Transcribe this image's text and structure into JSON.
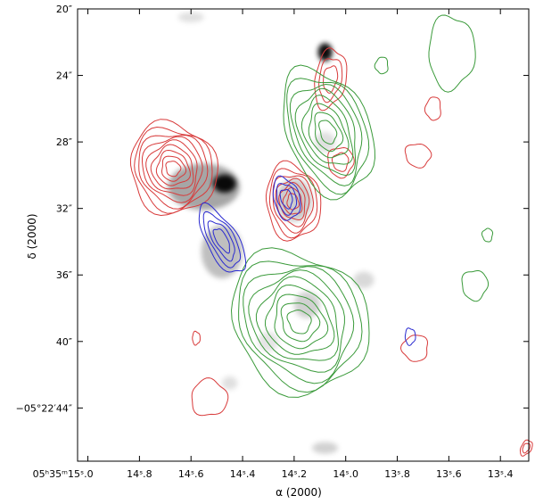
{
  "chart_data": {
    "type": "contour",
    "xlabel": "α (2000)",
    "ylabel": "δ (2000)",
    "x_ticks": [
      {
        "value": 15.0,
        "label": "05ʰ35ᵐ15ˢ.0"
      },
      {
        "value": 14.8,
        "label": "14ˢ.8"
      },
      {
        "value": 14.6,
        "label": "14ˢ.6"
      },
      {
        "value": 14.4,
        "label": "14ˢ.4"
      },
      {
        "value": 14.2,
        "label": "14ˢ.2"
      },
      {
        "value": 14.0,
        "label": "14ˢ.0"
      },
      {
        "value": 13.8,
        "label": "13ˢ.8"
      },
      {
        "value": 13.6,
        "label": "13ˢ.6"
      },
      {
        "value": 13.4,
        "label": "13ˢ.4"
      }
    ],
    "y_ticks": [
      {
        "value": 20,
        "label": "20″"
      },
      {
        "value": 24,
        "label": "24″"
      },
      {
        "value": 28,
        "label": "28″"
      },
      {
        "value": 32,
        "label": "32″"
      },
      {
        "value": 36,
        "label": "36″"
      },
      {
        "value": 40,
        "label": "40″"
      },
      {
        "value": 44,
        "label": "−05°22′44″"
      }
    ],
    "xlim": [
      15.04,
      13.29
    ],
    "ylim": [
      20,
      47.2
    ],
    "series": [
      {
        "color": "#d83a3a",
        "component": "red-contours",
        "regions": [
          {
            "cx": 14.67,
            "cy": 29.6,
            "rx": 0.165,
            "ry": 2.8,
            "angle": -28,
            "levels": 9
          },
          {
            "cx": 14.205,
            "cy": 31.6,
            "rx": 0.105,
            "ry": 2.3,
            "angle": -8,
            "levels": 7
          },
          {
            "cx": 14.06,
            "cy": 24.2,
            "rx": 0.06,
            "ry": 1.8,
            "angle": 10,
            "levels": 3
          },
          {
            "cx": 14.02,
            "cy": 29.2,
            "rx": 0.05,
            "ry": 0.9,
            "angle": 0,
            "levels": 2
          },
          {
            "cx": 13.72,
            "cy": 28.8,
            "rx": 0.05,
            "ry": 0.7,
            "angle": 20,
            "levels": 1
          },
          {
            "cx": 13.66,
            "cy": 26.0,
            "rx": 0.03,
            "ry": 0.7,
            "angle": 0,
            "levels": 1
          },
          {
            "cx": 13.73,
            "cy": 40.4,
            "rx": 0.05,
            "ry": 0.8,
            "angle": 30,
            "levels": 1
          },
          {
            "cx": 14.53,
            "cy": 43.4,
            "rx": 0.07,
            "ry": 1.1,
            "angle": 0,
            "levels": 1
          },
          {
            "cx": 14.58,
            "cy": 39.8,
            "rx": 0.015,
            "ry": 0.4,
            "angle": 0,
            "levels": 1
          },
          {
            "cx": 13.3,
            "cy": 46.4,
            "rx": 0.02,
            "ry": 0.5,
            "angle": 30,
            "levels": 2
          }
        ]
      },
      {
        "color": "#3a9a3a",
        "component": "green-contours",
        "regions": [
          {
            "cx": 14.18,
            "cy": 38.8,
            "rx": 0.25,
            "ry": 4.5,
            "angle": -40,
            "levels": 9
          },
          {
            "cx": 14.07,
            "cy": 27.4,
            "rx": 0.16,
            "ry": 4.0,
            "angle": -22,
            "levels": 8
          },
          {
            "cx": 13.59,
            "cy": 22.6,
            "rx": 0.09,
            "ry": 2.2,
            "angle": 0,
            "levels": 1
          },
          {
            "cx": 13.5,
            "cy": 36.6,
            "rx": 0.05,
            "ry": 0.9,
            "angle": 0,
            "levels": 1
          },
          {
            "cx": 13.45,
            "cy": 33.6,
            "rx": 0.02,
            "ry": 0.4,
            "angle": 0,
            "levels": 1
          },
          {
            "cx": 13.86,
            "cy": 23.4,
            "rx": 0.025,
            "ry": 0.5,
            "angle": 0,
            "levels": 1
          }
        ]
      },
      {
        "color": "#2a2ad0",
        "component": "blue-contours",
        "regions": [
          {
            "cx": 14.48,
            "cy": 33.9,
            "rx": 0.06,
            "ry": 2.3,
            "angle": -30,
            "levels": 4
          },
          {
            "cx": 14.23,
            "cy": 31.4,
            "rx": 0.05,
            "ry": 1.3,
            "angle": -15,
            "levels": 3
          },
          {
            "cx": 13.75,
            "cy": 39.7,
            "rx": 0.02,
            "ry": 0.5,
            "angle": 0,
            "levels": 1
          }
        ]
      },
      {
        "color": "#000000",
        "component": "greyscale-emission",
        "blobs": [
          {
            "cx": 14.08,
            "cy": 22.6,
            "rx": 0.028,
            "ry": 0.55,
            "opacity": 0.95
          },
          {
            "cx": 14.47,
            "cy": 30.5,
            "rx": 0.045,
            "ry": 0.55,
            "opacity": 0.95
          },
          {
            "cx": 14.55,
            "cy": 30.7,
            "rx": 0.14,
            "ry": 1.4,
            "opacity": 0.35
          },
          {
            "cx": 14.48,
            "cy": 34.6,
            "rx": 0.08,
            "ry": 1.6,
            "opacity": 0.25
          },
          {
            "cx": 14.2,
            "cy": 31.5,
            "rx": 0.07,
            "ry": 1.3,
            "opacity": 0.2
          },
          {
            "cx": 14.15,
            "cy": 37.8,
            "rx": 0.05,
            "ry": 0.8,
            "opacity": 0.18
          },
          {
            "cx": 13.93,
            "cy": 36.3,
            "rx": 0.04,
            "ry": 0.5,
            "opacity": 0.15
          },
          {
            "cx": 14.08,
            "cy": 28.0,
            "rx": 0.04,
            "ry": 0.6,
            "opacity": 0.12
          },
          {
            "cx": 14.6,
            "cy": 20.5,
            "rx": 0.05,
            "ry": 0.3,
            "opacity": 0.12
          },
          {
            "cx": 14.08,
            "cy": 46.4,
            "rx": 0.05,
            "ry": 0.35,
            "opacity": 0.18
          },
          {
            "cx": 14.45,
            "cy": 42.5,
            "rx": 0.03,
            "ry": 0.4,
            "opacity": 0.12
          },
          {
            "cx": 14.3,
            "cy": 40.0,
            "rx": 0.04,
            "ry": 0.6,
            "opacity": 0.1
          }
        ]
      }
    ]
  }
}
